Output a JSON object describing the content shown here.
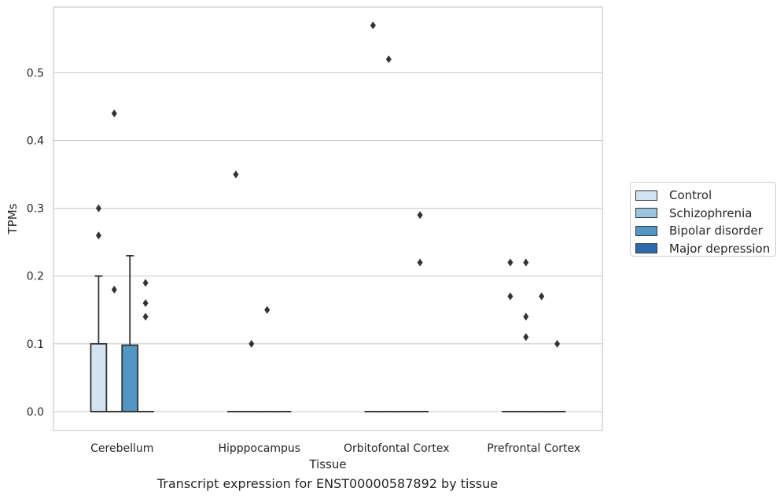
{
  "caption": "Transcript expression for ENST00000587892 by tissue",
  "chart_data": {
    "type": "box",
    "xlabel": "Tissue",
    "ylabel": "TPMs",
    "ylim": [
      -0.028,
      0.597
    ],
    "yticks": [
      0.0,
      0.1,
      0.2,
      0.3,
      0.4,
      0.5
    ],
    "ytick_labels": [
      "0.0",
      "0.1",
      "0.2",
      "0.3",
      "0.4",
      "0.5"
    ],
    "grid": "horizontal",
    "legend_position": "right",
    "categories": [
      "Cerebellum",
      "Hipppocampus",
      "Orbitofontal Cortex",
      "Prefrontal Cortex"
    ],
    "series": [
      {
        "name": "Control",
        "color": "#d4e3f2",
        "boxes": [
          {
            "q1": 0.0,
            "median": 0.0,
            "q3": 0.1,
            "whisker_low": 0.0,
            "whisker_high": 0.2,
            "outliers": [
              0.3,
              0.26
            ]
          },
          {
            "q1": 0.0,
            "median": 0.0,
            "q3": 0.0,
            "whisker_low": 0.0,
            "whisker_high": 0.0,
            "outliers": [
              0.35
            ]
          },
          {
            "q1": 0.0,
            "median": 0.0,
            "q3": 0.0,
            "whisker_low": 0.0,
            "whisker_high": 0.0,
            "outliers": [
              0.57
            ]
          },
          {
            "q1": 0.0,
            "median": 0.0,
            "q3": 0.0,
            "whisker_low": 0.0,
            "whisker_high": 0.0,
            "outliers": [
              0.22,
              0.17
            ]
          }
        ]
      },
      {
        "name": "Schizophrenia",
        "color": "#9cc4de",
        "boxes": [
          {
            "q1": 0.0,
            "median": 0.0,
            "q3": 0.0,
            "whisker_low": 0.0,
            "whisker_high": 0.0,
            "outliers": [
              0.44,
              0.18
            ]
          },
          {
            "q1": 0.0,
            "median": 0.0,
            "q3": 0.0,
            "whisker_low": 0.0,
            "whisker_high": 0.0,
            "outliers": [
              0.1
            ]
          },
          {
            "q1": 0.0,
            "median": 0.0,
            "q3": 0.0,
            "whisker_low": 0.0,
            "whisker_high": 0.0,
            "outliers": [
              0.52
            ]
          },
          {
            "q1": 0.0,
            "median": 0.0,
            "q3": 0.0,
            "whisker_low": 0.0,
            "whisker_high": 0.0,
            "outliers": [
              0.22,
              0.14,
              0.11
            ]
          }
        ]
      },
      {
        "name": "Bipolar disorder",
        "color": "#5296c6",
        "boxes": [
          {
            "q1": 0.0,
            "median": 0.0,
            "q3": 0.098,
            "whisker_low": 0.0,
            "whisker_high": 0.23,
            "outliers": []
          },
          {
            "q1": 0.0,
            "median": 0.0,
            "q3": 0.0,
            "whisker_low": 0.0,
            "whisker_high": 0.0,
            "outliers": [
              0.15
            ]
          },
          {
            "q1": 0.0,
            "median": 0.0,
            "q3": 0.0,
            "whisker_low": 0.0,
            "whisker_high": 0.0,
            "outliers": []
          },
          {
            "q1": 0.0,
            "median": 0.0,
            "q3": 0.0,
            "whisker_low": 0.0,
            "whisker_high": 0.0,
            "outliers": [
              0.17
            ]
          }
        ]
      },
      {
        "name": "Major depression",
        "color": "#2a6aad",
        "boxes": [
          {
            "q1": 0.0,
            "median": 0.0,
            "q3": 0.0,
            "whisker_low": 0.0,
            "whisker_high": 0.0,
            "outliers": [
              0.19,
              0.16,
              0.14
            ]
          },
          {
            "q1": 0.0,
            "median": 0.0,
            "q3": 0.0,
            "whisker_low": 0.0,
            "whisker_high": 0.0,
            "outliers": []
          },
          {
            "q1": 0.0,
            "median": 0.0,
            "q3": 0.0,
            "whisker_low": 0.0,
            "whisker_high": 0.0,
            "outliers": [
              0.29,
              0.22
            ]
          },
          {
            "q1": 0.0,
            "median": 0.0,
            "q3": 0.0,
            "whisker_low": 0.0,
            "whisker_high": 0.0,
            "outliers": [
              0.1
            ]
          }
        ]
      }
    ]
  }
}
